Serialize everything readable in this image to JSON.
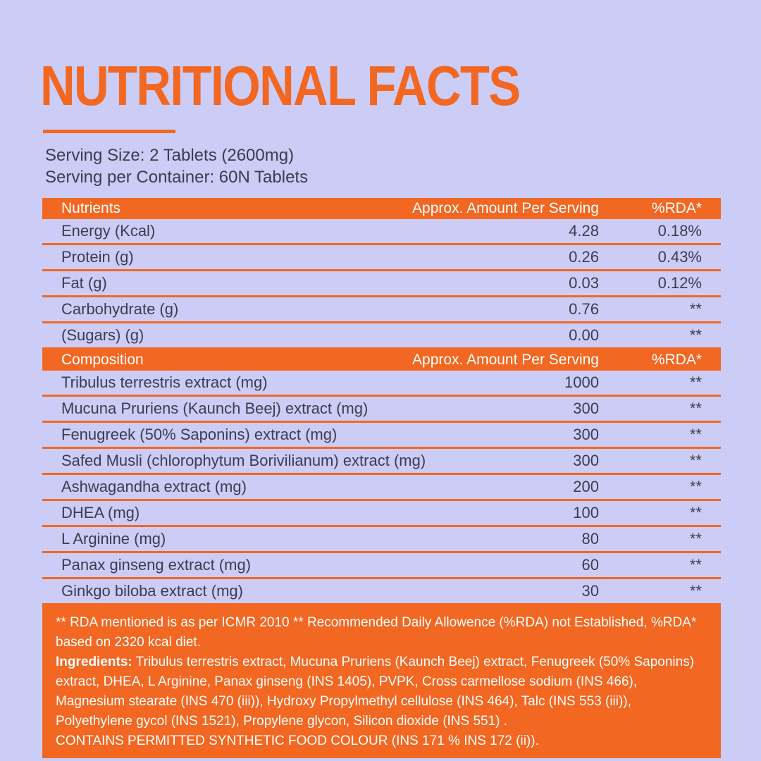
{
  "header": {
    "title": "NUTRITIONAL FACTS",
    "serving_size": "Serving Size: 2 Tablets (2600mg)",
    "serving_per_container": "Serving per Container: 60N Tablets"
  },
  "colors": {
    "accent_orange": "#F26722",
    "background_lavender": "#CCCDF6",
    "body_text": "#3C3C4E",
    "header_row_text": "#FFFFFF"
  },
  "nutrients_table": {
    "headers": {
      "col1": "Nutrients",
      "col2": "Approx. Amount Per Serving",
      "col3": "%RDA*"
    },
    "rows": [
      {
        "label": "Energy (Kcal)",
        "amount": "4.28",
        "rda": "0.18%"
      },
      {
        "label": "Protein (g)",
        "amount": "0.26",
        "rda": "0.43%"
      },
      {
        "label": "Fat (g)",
        "amount": "0.03",
        "rda": "0.12%"
      },
      {
        "label": "Carbohydrate (g)",
        "amount": "0.76",
        "rda": "**"
      },
      {
        "label": "(Sugars) (g)",
        "amount": "0.00",
        "rda": "**"
      }
    ]
  },
  "composition_table": {
    "headers": {
      "col1": "Composition",
      "col2": "Approx. Amount Per Serving",
      "col3": "%RDA*"
    },
    "rows": [
      {
        "label": "Tribulus terrestris extract (mg)",
        "amount": "1000",
        "rda": "**"
      },
      {
        "label": "Mucuna Pruriens (Kaunch Beej) extract (mg)",
        "amount": "300",
        "rda": "**"
      },
      {
        "label": "Fenugreek (50% Saponins)  extract (mg)",
        "amount": "300",
        "rda": "**"
      },
      {
        "label": "Safed Musli (chlorophytum Borivilianum) extract (mg)",
        "amount": "300",
        "rda": "**"
      },
      {
        "label": "Ashwagandha extract (mg)",
        "amount": "200",
        "rda": "**"
      },
      {
        "label": "DHEA (mg)",
        "amount": "100",
        "rda": "**"
      },
      {
        "label": "L Arginine (mg)",
        "amount": "80",
        "rda": "**"
      },
      {
        "label": "Panax ginseng extract (mg)",
        "amount": "60",
        "rda": "**"
      },
      {
        "label": "Ginkgo biloba extract (mg)",
        "amount": "30",
        "rda": "**"
      }
    ]
  },
  "footnotes": {
    "rda_note": "** RDA mentioned is as per ICMR 2010 ** Recommended Daily Allowence (%RDA) not Established, %RDA* based on 2320 kcal diet.",
    "ingredients_label": "Ingredients:",
    "ingredients_text": " Tribulus terrestris extract, Mucuna Pruriens (Kaunch Beej) extract, Fenugreek (50% Saponins) extract, DHEA, L Arginine, Panax ginseng (INS 1405), PVPK, Cross carmellose sodium (INS 466), Magnesium stearate (INS 470 (iii)), Hydroxy Propylmethyl cellulose (INS 464), Talc (INS 553 (iii)), Polyethylene gycol (INS 1521), Propylene glycon, Silicon dioxide (INS 551) .",
    "contains": "CONTAINS PERMITTED SYNTHETIC FOOD COLOUR (INS 171 % INS 172 (ii))."
  }
}
